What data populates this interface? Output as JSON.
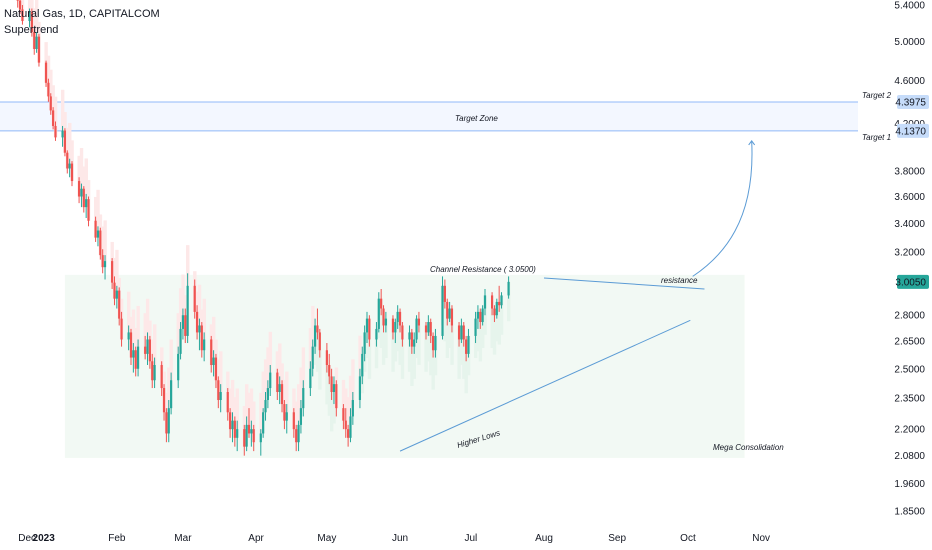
{
  "header": {
    "symbol_line": "Natural Gas, 1D, CAPITALCOM",
    "indicator": "Supertrend"
  },
  "colors": {
    "bull": "#26a69a",
    "bear": "#ef5350",
    "bull_zone": "#e6f4ec",
    "bear_zone": "#fde8e8",
    "trendline": "#5b9bd5",
    "target_line": "#90b8f8",
    "target_zone_fill": "#f3f7ff",
    "price_tag": "#26a69a",
    "target_tag": "#c6dcfa"
  },
  "annotations": {
    "target_zone": "Target Zone",
    "target1": "Target 1",
    "target2": "Target 2",
    "channel_resistance": "Channel Resistance ( 3.0500)",
    "resistance": "resistance",
    "higher_lows": "Higher Lows",
    "mega_consolidation": "Mega Consolidation"
  },
  "chart_data": {
    "type": "candlestick",
    "symbol": "Natural Gas",
    "timeframe": "1D",
    "exchange": "CAPITALCOM",
    "y_scale": "log",
    "ylim": [
      1.8,
      5.45
    ],
    "y_ticks": [
      "5.4000",
      "5.0000",
      "4.6000",
      "4.2000",
      "3.8000",
      "3.6000",
      "3.4000",
      "3.2000",
      "2.8000",
      "2.6500",
      "2.5000",
      "2.3500",
      "2.2000",
      "2.0800",
      "1.9600",
      "1.8500"
    ],
    "x_ticks": [
      "Dec",
      "2023",
      "Feb",
      "Mar",
      "Apr",
      "May",
      "Jun",
      "Jul",
      "Aug",
      "Sep",
      "Oct",
      "Nov"
    ],
    "x_range": [
      "2022-12-19",
      "2023-11-30"
    ],
    "last_price": "3.0050",
    "target1_price": "4.1370",
    "target2_price": "4.3975",
    "channel_resistance_price": 3.05,
    "channel_support_price": 2.07,
    "ohlc_start_date": "2022-12-21",
    "ohlc": [
      [
        5.5,
        5.55,
        5.37,
        5.45
      ],
      [
        5.45,
        5.48,
        5.3,
        5.35
      ],
      [
        5.35,
        5.4,
        5.18,
        5.22
      ],
      [
        5.22,
        5.36,
        5.15,
        5.32
      ],
      [
        5.32,
        5.36,
        5.05,
        5.1
      ],
      [
        5.1,
        5.14,
        4.86,
        4.92
      ],
      [
        4.92,
        5.1,
        4.88,
        5.05
      ],
      [
        5.05,
        5.08,
        4.74,
        4.78
      ],
      [
        4.78,
        4.8,
        4.54,
        4.58
      ],
      [
        4.58,
        4.62,
        4.4,
        4.45
      ],
      [
        4.45,
        4.48,
        4.28,
        4.32
      ],
      [
        4.32,
        4.35,
        4.15,
        4.18
      ],
      [
        4.18,
        4.22,
        4.05,
        4.08
      ],
      [
        4.08,
        4.18,
        4.0,
        4.14
      ],
      [
        4.14,
        4.16,
        3.92,
        3.95
      ],
      [
        3.95,
        3.97,
        3.78,
        3.82
      ],
      [
        3.82,
        3.9,
        3.75,
        3.86
      ],
      [
        3.86,
        3.88,
        3.68,
        3.72
      ],
      [
        3.72,
        3.75,
        3.55,
        3.6
      ],
      [
        3.6,
        3.7,
        3.52,
        3.66
      ],
      [
        3.66,
        3.68,
        3.48,
        3.52
      ],
      [
        3.52,
        3.62,
        3.44,
        3.58
      ],
      [
        3.58,
        3.6,
        3.38,
        3.42
      ],
      [
        3.42,
        3.45,
        3.27,
        3.3
      ],
      [
        3.3,
        3.38,
        3.24,
        3.35
      ],
      [
        3.35,
        3.37,
        3.15,
        3.18
      ],
      [
        3.18,
        3.22,
        3.06,
        3.1
      ],
      [
        3.1,
        3.18,
        3.02,
        3.14
      ],
      [
        3.14,
        3.16,
        2.96,
        3.0
      ],
      [
        3.0,
        3.04,
        2.86,
        2.9
      ],
      [
        2.9,
        2.98,
        2.84,
        2.95
      ],
      [
        2.95,
        2.97,
        2.74,
        2.78
      ],
      [
        2.78,
        2.82,
        2.62,
        2.66
      ],
      [
        2.66,
        2.74,
        2.6,
        2.7
      ],
      [
        2.7,
        2.72,
        2.52,
        2.56
      ],
      [
        2.56,
        2.64,
        2.48,
        2.6
      ],
      [
        2.6,
        2.62,
        2.46,
        2.5
      ],
      [
        2.5,
        2.66,
        2.46,
        2.62
      ],
      [
        2.62,
        2.68,
        2.55,
        2.58
      ],
      [
        2.58,
        2.7,
        2.52,
        2.66
      ],
      [
        2.66,
        2.68,
        2.5,
        2.54
      ],
      [
        2.54,
        2.58,
        2.4,
        2.44
      ],
      [
        2.44,
        2.56,
        2.4,
        2.52
      ],
      [
        2.52,
        2.54,
        2.36,
        2.4
      ],
      [
        2.4,
        2.42,
        2.24,
        2.28
      ],
      [
        2.28,
        2.3,
        2.14,
        2.18
      ],
      [
        2.18,
        2.34,
        2.14,
        2.3
      ],
      [
        2.3,
        2.48,
        2.27,
        2.44
      ],
      [
        2.44,
        2.62,
        2.4,
        2.58
      ],
      [
        2.58,
        2.76,
        2.55,
        2.72
      ],
      [
        2.72,
        2.84,
        2.66,
        2.8
      ],
      [
        2.8,
        2.84,
        2.64,
        2.68
      ],
      [
        2.68,
        3.06,
        2.64,
        2.98
      ],
      [
        2.98,
        3.02,
        2.78,
        2.82
      ],
      [
        2.82,
        2.86,
        2.66,
        2.7
      ],
      [
        2.7,
        2.78,
        2.6,
        2.74
      ],
      [
        2.74,
        2.76,
        2.56,
        2.6
      ],
      [
        2.6,
        2.7,
        2.54,
        2.66
      ],
      [
        2.66,
        2.68,
        2.48,
        2.52
      ],
      [
        2.52,
        2.6,
        2.46,
        2.56
      ],
      [
        2.56,
        2.58,
        2.4,
        2.44
      ],
      [
        2.44,
        2.46,
        2.3,
        2.34
      ],
      [
        2.34,
        2.42,
        2.28,
        2.38
      ],
      [
        2.38,
        2.4,
        2.24,
        2.28
      ],
      [
        2.28,
        2.3,
        2.16,
        2.2
      ],
      [
        2.2,
        2.28,
        2.14,
        2.24
      ],
      [
        2.24,
        2.26,
        2.12,
        2.16
      ],
      [
        2.16,
        2.24,
        2.1,
        2.2
      ],
      [
        2.2,
        2.22,
        2.08,
        2.12
      ],
      [
        2.12,
        2.26,
        2.1,
        2.22
      ],
      [
        2.22,
        2.3,
        2.16,
        2.18
      ],
      [
        2.18,
        2.24,
        2.12,
        2.2
      ],
      [
        2.2,
        2.22,
        2.1,
        2.14
      ],
      [
        2.14,
        2.2,
        2.08,
        2.18
      ],
      [
        2.18,
        2.3,
        2.16,
        2.28
      ],
      [
        2.28,
        2.38,
        2.24,
        2.34
      ],
      [
        2.34,
        2.44,
        2.3,
        2.4
      ],
      [
        2.4,
        2.52,
        2.36,
        2.48
      ],
      [
        2.48,
        2.5,
        2.34,
        2.38
      ],
      [
        2.38,
        2.46,
        2.32,
        2.42
      ],
      [
        2.42,
        2.44,
        2.28,
        2.32
      ],
      [
        2.32,
        2.34,
        2.2,
        2.24
      ],
      [
        2.24,
        2.32,
        2.18,
        2.28
      ],
      [
        2.28,
        2.3,
        2.16,
        2.2
      ],
      [
        2.2,
        2.22,
        2.1,
        2.14
      ],
      [
        2.14,
        2.24,
        2.1,
        2.22
      ],
      [
        2.22,
        2.34,
        2.18,
        2.3
      ],
      [
        2.3,
        2.44,
        2.26,
        2.4
      ],
      [
        2.4,
        2.54,
        2.36,
        2.5
      ],
      [
        2.5,
        2.66,
        2.46,
        2.62
      ],
      [
        2.62,
        2.78,
        2.58,
        2.74
      ],
      [
        2.74,
        2.84,
        2.66,
        2.7
      ],
      [
        2.7,
        2.72,
        2.56,
        2.6
      ],
      [
        2.6,
        2.64,
        2.48,
        2.52
      ],
      [
        2.52,
        2.58,
        2.42,
        2.46
      ],
      [
        2.46,
        2.5,
        2.34,
        2.38
      ],
      [
        2.38,
        2.46,
        2.32,
        2.42
      ],
      [
        2.42,
        2.44,
        2.26,
        2.3
      ],
      [
        2.3,
        2.32,
        2.2,
        2.24
      ],
      [
        2.24,
        2.3,
        2.16,
        2.2
      ],
      [
        2.2,
        2.22,
        2.12,
        2.16
      ],
      [
        2.16,
        2.3,
        2.14,
        2.26
      ],
      [
        2.26,
        2.38,
        2.22,
        2.34
      ],
      [
        2.34,
        2.5,
        2.3,
        2.46
      ],
      [
        2.46,
        2.62,
        2.42,
        2.58
      ],
      [
        2.58,
        2.74,
        2.54,
        2.7
      ],
      [
        2.7,
        2.82,
        2.64,
        2.78
      ],
      [
        2.78,
        2.8,
        2.62,
        2.66
      ],
      [
        2.66,
        2.76,
        2.62,
        2.72
      ],
      [
        2.72,
        2.94,
        2.7,
        2.9
      ],
      [
        2.9,
        2.96,
        2.8,
        2.84
      ],
      [
        2.84,
        2.86,
        2.7,
        2.74
      ],
      [
        2.74,
        2.82,
        2.7,
        2.78
      ],
      [
        2.78,
        2.8,
        2.66,
        2.7
      ],
      [
        2.7,
        2.78,
        2.64,
        2.76
      ],
      [
        2.76,
        2.86,
        2.72,
        2.82
      ],
      [
        2.82,
        2.84,
        2.7,
        2.74
      ],
      [
        2.74,
        2.76,
        2.62,
        2.66
      ],
      [
        2.66,
        2.74,
        2.62,
        2.7
      ],
      [
        2.7,
        2.72,
        2.58,
        2.62
      ],
      [
        2.62,
        2.7,
        2.58,
        2.66
      ],
      [
        2.66,
        2.8,
        2.64,
        2.78
      ],
      [
        2.78,
        2.82,
        2.7,
        2.74
      ],
      [
        2.74,
        2.76,
        2.66,
        2.7
      ],
      [
        2.7,
        2.8,
        2.68,
        2.76
      ],
      [
        2.76,
        2.78,
        2.64,
        2.68
      ],
      [
        2.68,
        2.7,
        2.56,
        2.6
      ],
      [
        2.6,
        2.72,
        2.56,
        2.68
      ],
      [
        2.68,
        3.04,
        2.66,
        2.98
      ],
      [
        2.98,
        3.02,
        2.84,
        2.88
      ],
      [
        2.88,
        2.9,
        2.74,
        2.78
      ],
      [
        2.78,
        2.88,
        2.76,
        2.84
      ],
      [
        2.84,
        2.86,
        2.7,
        2.74
      ],
      [
        2.74,
        2.76,
        2.62,
        2.66
      ],
      [
        2.66,
        2.78,
        2.64,
        2.74
      ],
      [
        2.74,
        2.76,
        2.62,
        2.66
      ],
      [
        2.66,
        2.68,
        2.54,
        2.58
      ],
      [
        2.58,
        2.72,
        2.56,
        2.68
      ],
      [
        2.68,
        2.82,
        2.64,
        2.78
      ],
      [
        2.78,
        2.86,
        2.72,
        2.82
      ],
      [
        2.82,
        2.84,
        2.72,
        2.76
      ],
      [
        2.76,
        2.86,
        2.74,
        2.84
      ],
      [
        2.84,
        2.96,
        2.8,
        2.92
      ],
      [
        2.92,
        2.94,
        2.8,
        2.84
      ],
      [
        2.84,
        2.86,
        2.76,
        2.8
      ],
      [
        2.8,
        2.9,
        2.78,
        2.88
      ],
      [
        2.88,
        2.98,
        2.82,
        2.86
      ],
      [
        2.86,
        2.94,
        2.84,
        2.92
      ],
      [
        2.92,
        3.04,
        2.9,
        3.005
      ]
    ]
  }
}
